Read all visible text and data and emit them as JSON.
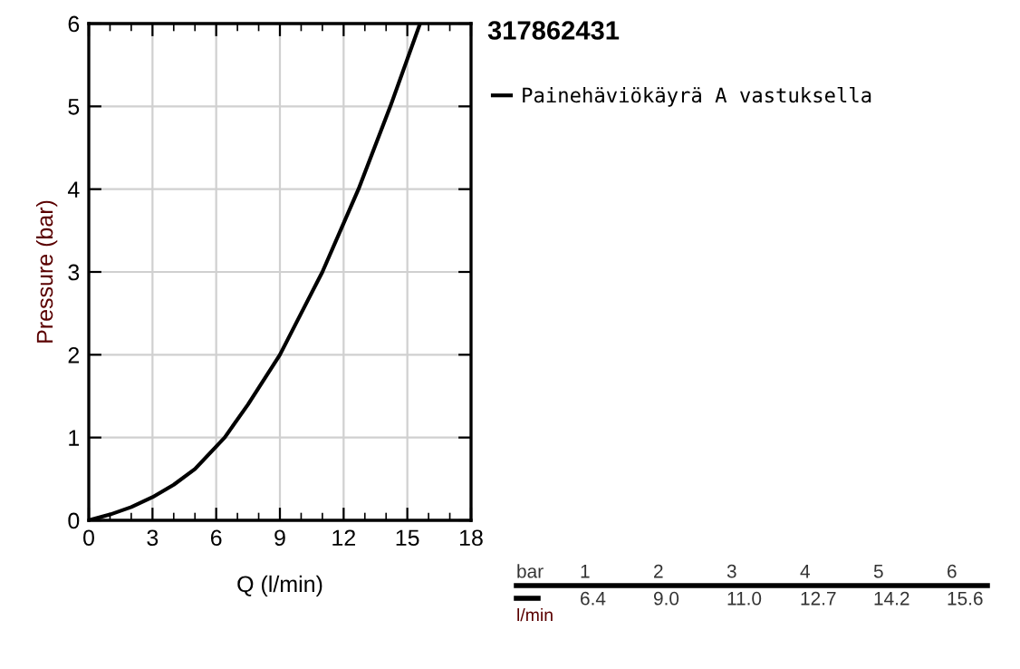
{
  "chart_data": {
    "type": "line",
    "title": "317862431",
    "xlabel": "Q (l/min)",
    "ylabel": "Pressure (bar)",
    "series": [
      {
        "name": "Painehäviökäyrä A vastuksella",
        "color": "#000000",
        "x": [
          0,
          1,
          2,
          3,
          4,
          5,
          6.4,
          7.5,
          8,
          9,
          10,
          11,
          12.7,
          14.2,
          15.6
        ],
        "values": [
          0,
          0.07,
          0.16,
          0.28,
          0.43,
          0.62,
          1,
          1.4,
          1.6,
          2,
          2.5,
          3,
          4,
          5,
          6
        ]
      }
    ],
    "annotations": [
      "bar",
      "1",
      "2",
      "3",
      "4",
      "5",
      "6",
      "l/min",
      "6.4",
      "9.0",
      "11.0",
      "12.7",
      "14.2",
      "15.6"
    ],
    "xlim": [
      0,
      18
    ],
    "xticks": [
      0,
      3,
      6,
      9,
      12,
      15,
      18
    ],
    "ylim": [
      0,
      6
    ],
    "yticks": [
      0,
      1,
      2,
      3,
      4,
      5,
      6
    ],
    "grid": true,
    "legend": "top right",
    "marker": "none",
    "line_style": "solid"
  }
}
